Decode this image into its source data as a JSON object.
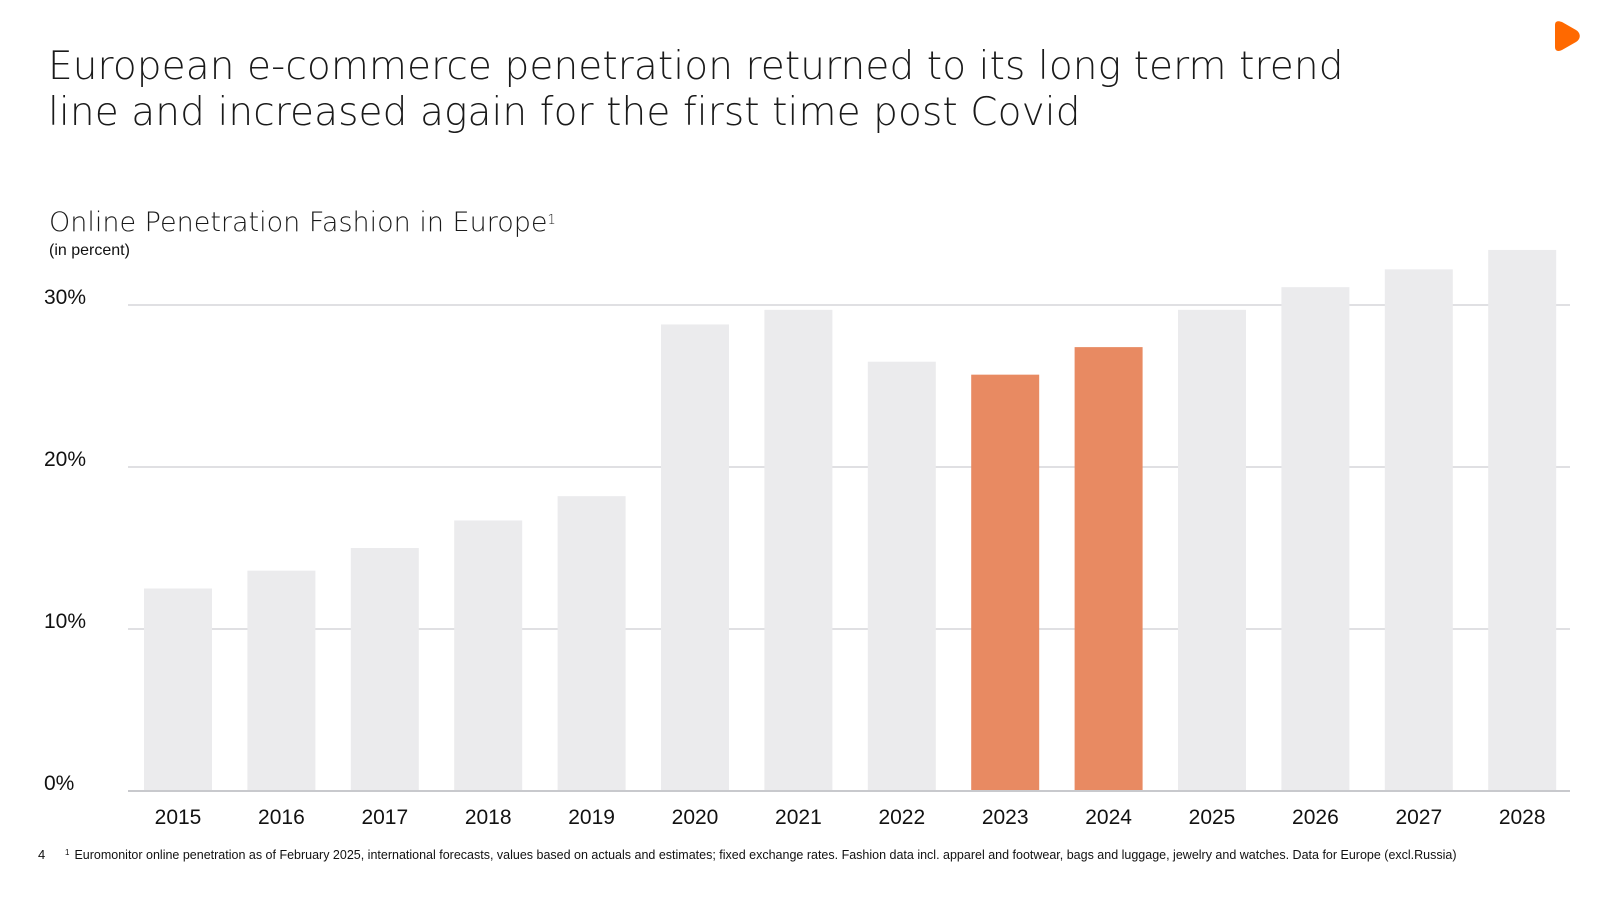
{
  "slide": {
    "headline_line1": "European e-commerce penetration returned to its long term trend",
    "headline_line2": "line and increased again for the first time post Covid",
    "page_number": "4",
    "footnote_marker": "1",
    "footnote": "Euromonitor online penetration as of February 2025, international forecasts, values based on actuals and estimates; fixed exchange rates. Fashion data incl. apparel and footwear, bags and luggage, jewelry and watches. Data for Europe (excl.Russia)",
    "logo_icon": "orange-play-logo-icon",
    "logo_color": "#ff6900"
  },
  "chart_data": {
    "type": "bar",
    "title": "Online Penetration Fashion in Europe",
    "title_superscript": "1",
    "subtitle": "(in percent)",
    "categories": [
      "2015",
      "2016",
      "2017",
      "2018",
      "2019",
      "2020",
      "2021",
      "2022",
      "2023",
      "2024",
      "2025",
      "2026",
      "2027",
      "2028"
    ],
    "values": [
      12.5,
      13.6,
      15.0,
      16.7,
      18.2,
      28.8,
      29.7,
      26.5,
      25.7,
      27.4,
      29.7,
      31.1,
      32.2,
      33.4
    ],
    "highlighted": [
      false,
      false,
      false,
      false,
      false,
      false,
      false,
      false,
      true,
      true,
      false,
      false,
      false,
      false
    ],
    "ylim": [
      0,
      30
    ],
    "yticks": [
      0,
      10,
      20,
      30
    ],
    "ytick_labels": [
      "0%",
      "10%",
      "20%",
      "30%"
    ],
    "grid": true,
    "colors": {
      "bar": "#ebebed",
      "highlight": "#e88a62",
      "grid": "#d5d6da",
      "axis": "#c8c9cd",
      "text": "#111111"
    }
  }
}
